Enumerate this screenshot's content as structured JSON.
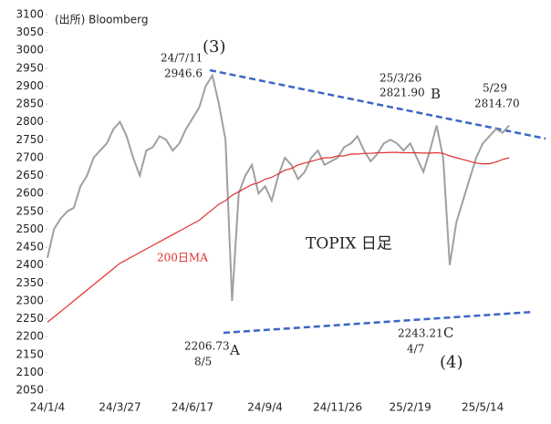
{
  "chart_data": {
    "type": "line",
    "source": "(出所) Bloomberg",
    "title": "TOPIX 日足",
    "categories": [
      "24/1/4",
      null,
      null,
      null,
      null,
      null,
      null,
      null,
      null,
      null,
      null,
      "24/3/27",
      null,
      null,
      null,
      null,
      null,
      null,
      null,
      null,
      null,
      null,
      "24/6/17",
      null,
      null,
      null,
      null,
      null,
      null,
      null,
      null,
      null,
      null,
      "24/9/4",
      null,
      null,
      null,
      null,
      null,
      null,
      null,
      null,
      null,
      null,
      "24/11/26",
      null,
      null,
      null,
      null,
      null,
      null,
      null,
      null,
      null,
      null,
      "25/2/19",
      null,
      null,
      null,
      null,
      null,
      null,
      null,
      null,
      null,
      null,
      "25/5/14",
      null,
      null,
      null,
      null
    ],
    "series": [
      {
        "name": "TOPIX",
        "color": "#a0a0a0",
        "values": [
          2420,
          2500,
          2530,
          2550,
          2560,
          2620,
          2650,
          2700,
          2720,
          2740,
          2780,
          2800,
          2760,
          2700,
          2650,
          2720,
          2730,
          2760,
          2750,
          2720,
          2740,
          2780,
          2810,
          2840,
          2900,
          2930,
          2850,
          2750,
          2300,
          2600,
          2650,
          2680,
          2600,
          2620,
          2580,
          2650,
          2700,
          2680,
          2640,
          2660,
          2700,
          2720,
          2680,
          2690,
          2700,
          2730,
          2740,
          2760,
          2720,
          2690,
          2710,
          2740,
          2750,
          2740,
          2720,
          2740,
          2700,
          2660,
          2720,
          2790,
          2700,
          2400,
          2520,
          2580,
          2640,
          2700,
          2740,
          2760,
          2780,
          2770,
          2790
        ]
      },
      {
        "name": "200日MA",
        "color": "#e03030",
        "values": [
          2240,
          2255,
          2270,
          2285,
          2300,
          2315,
          2330,
          2345,
          2360,
          2375,
          2390,
          2405,
          2415,
          2425,
          2435,
          2445,
          2455,
          2465,
          2475,
          2485,
          2495,
          2505,
          2515,
          2525,
          2540,
          2555,
          2570,
          2580,
          2595,
          2605,
          2615,
          2625,
          2630,
          2640,
          2645,
          2655,
          2665,
          2670,
          2680,
          2685,
          2690,
          2695,
          2700,
          2700,
          2705,
          2705,
          2710,
          2710,
          2712,
          2712,
          2714,
          2714,
          2715,
          2715,
          2714,
          2714,
          2714,
          2713,
          2713,
          2714,
          2712,
          2705,
          2700,
          2695,
          2690,
          2685,
          2683,
          2683,
          2688,
          2695,
          2700
        ]
      }
    ],
    "ylim": [
      2050,
      3100
    ],
    "yticks": [
      2050,
      2100,
      2150,
      2200,
      2250,
      2300,
      2350,
      2400,
      2450,
      2500,
      2550,
      2600,
      2650,
      2700,
      2750,
      2800,
      2850,
      2900,
      2950,
      3000,
      3050,
      3100
    ],
    "annotations": [
      "24/7/11",
      "2946.6",
      "(3)",
      "25/3/26",
      "2821.90",
      "B",
      "5/29",
      "2814.70",
      "2206.73",
      "8/5",
      "A",
      "2243.21",
      "4/7",
      "C",
      "(4)"
    ]
  }
}
